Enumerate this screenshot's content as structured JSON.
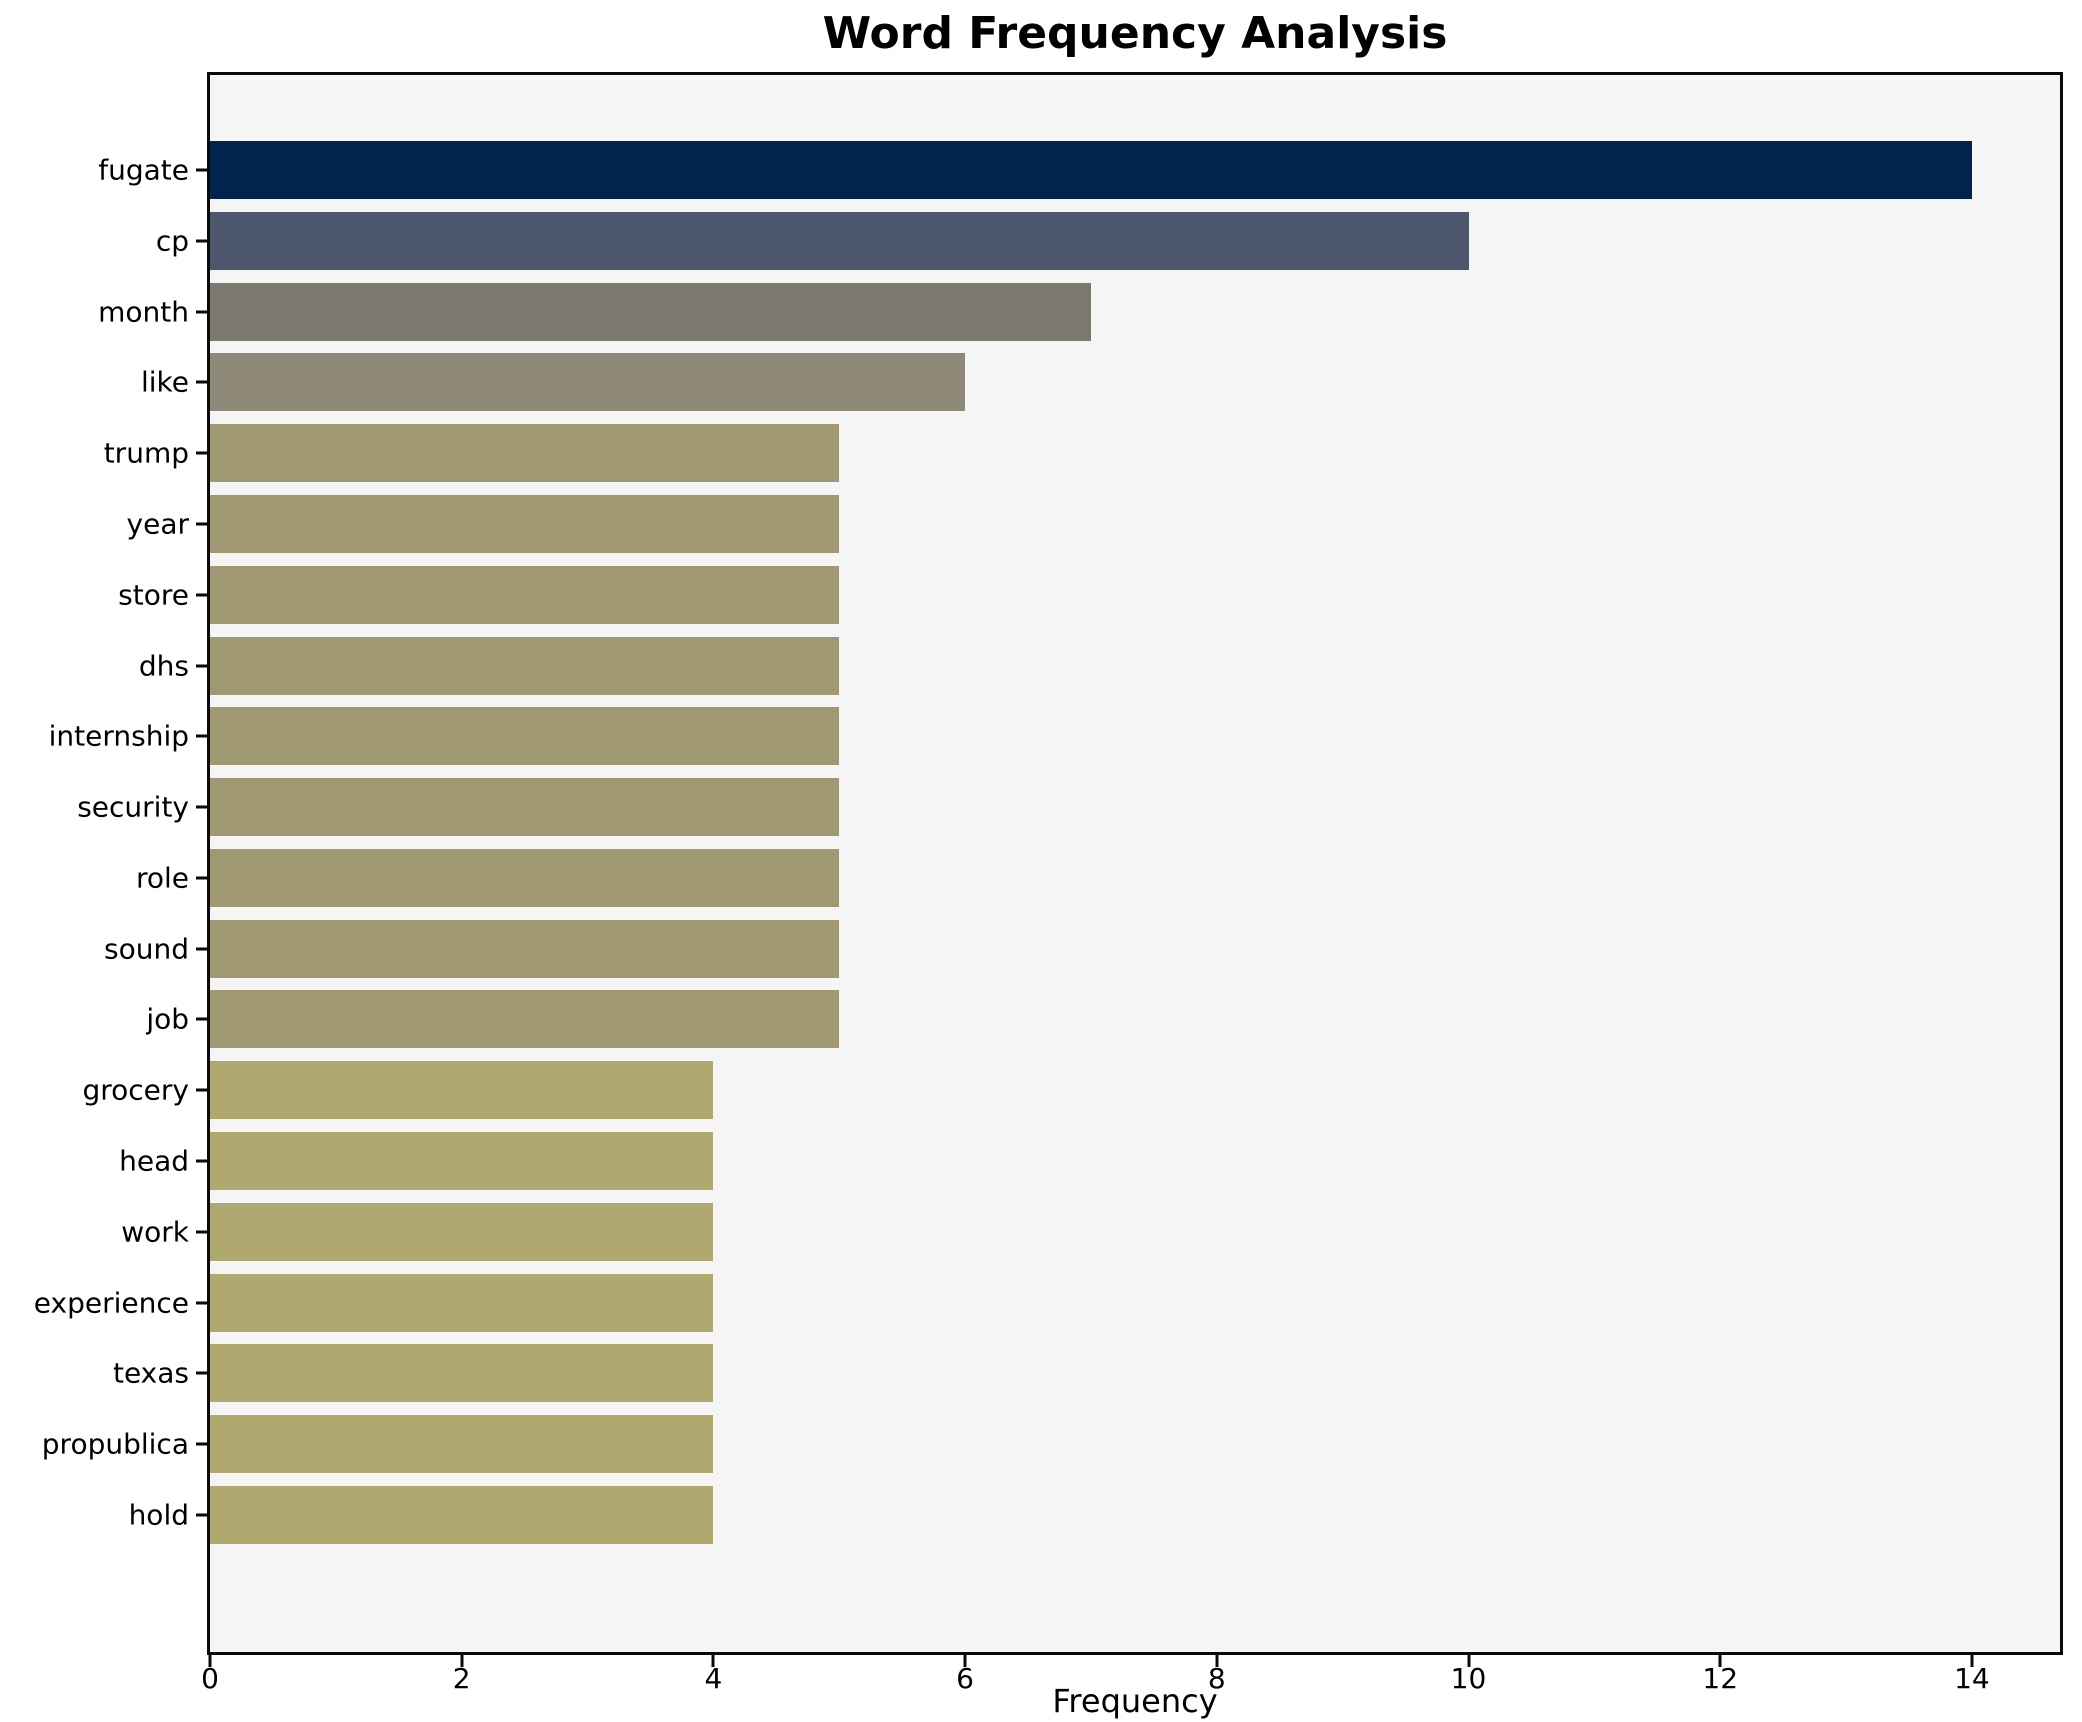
{
  "title": "Word Frequency Analysis",
  "chart_data": {
    "type": "bar",
    "orientation": "horizontal",
    "title": "Word Frequency Analysis",
    "xlabel": "Frequency",
    "ylabel": "",
    "categories": [
      "fugate",
      "cp",
      "month",
      "like",
      "trump",
      "year",
      "store",
      "dhs",
      "internship",
      "security",
      "role",
      "sound",
      "job",
      "grocery",
      "head",
      "work",
      "experience",
      "texas",
      "propublica",
      "hold"
    ],
    "values": [
      14,
      10,
      7,
      6,
      5,
      5,
      5,
      5,
      5,
      5,
      5,
      5,
      5,
      4,
      4,
      4,
      4,
      4,
      4,
      4
    ],
    "bar_colors": [
      "#02234e",
      "#4c566c",
      "#7b7970",
      "#8e8977",
      "#a09872",
      "#a09872",
      "#a09872",
      "#a09872",
      "#a09872",
      "#a09872",
      "#a09872",
      "#a09872",
      "#a09872",
      "#afa86f",
      "#afa86f",
      "#afa86f",
      "#afa86f",
      "#afa86f",
      "#afa86f",
      "#afa86f"
    ],
    "xlim": [
      0,
      14.7
    ],
    "xticks": [
      0,
      2,
      4,
      6,
      8,
      10,
      12,
      14
    ],
    "grid": false,
    "legend": false,
    "plot_bg": "#f5f5f5",
    "fig_bg": "#ffffff",
    "spine_color": "#0a0a0a",
    "text_color": "#000000"
  }
}
